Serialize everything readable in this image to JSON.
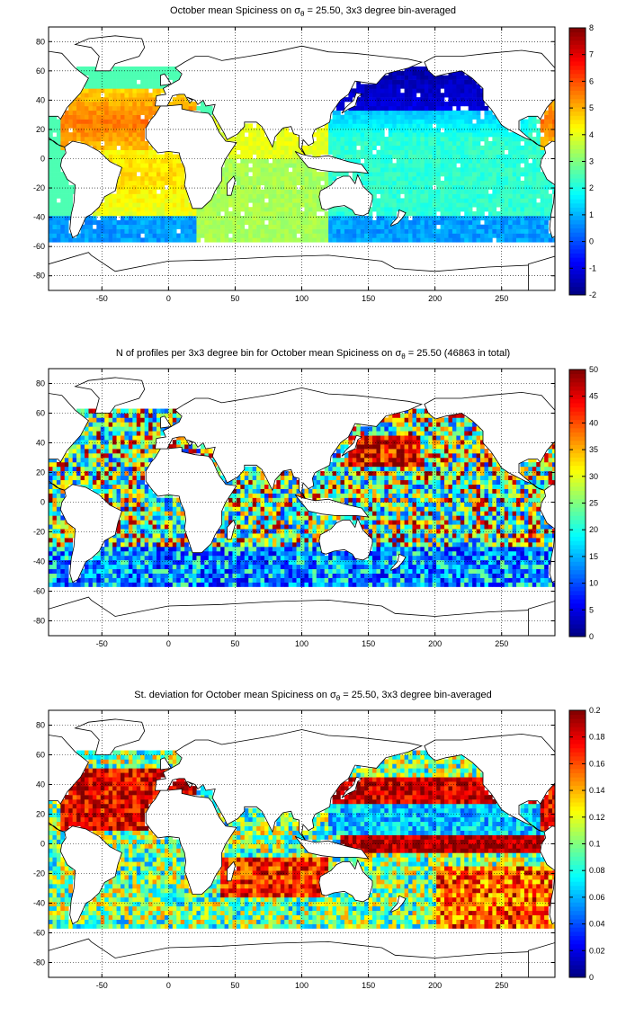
{
  "chart_data": [
    {
      "type": "heatmap",
      "title_parts": {
        "before": "October mean Spiciness on ",
        "symbol": "σ",
        "subscript": "θ",
        "after": " = 25.50, 3x3 degree bin-averaged"
      },
      "xlabel": "",
      "ylabel": "",
      "xlim": [
        -90,
        290
      ],
      "ylim": [
        -90,
        90
      ],
      "xticks": [
        -50,
        0,
        50,
        100,
        150,
        200,
        250
      ],
      "yticks": [
        80,
        60,
        40,
        20,
        0,
        -20,
        -40,
        -60,
        -80
      ],
      "grid": true,
      "colormap": "jet",
      "colorbar": {
        "min": -2,
        "max": 8,
        "ticks": [
          8,
          7,
          6,
          5,
          4,
          3,
          2,
          1,
          0,
          -1,
          -2
        ]
      },
      "regions": [
        {
          "region": "North Atlantic subtropical gyre",
          "value": 5.5
        },
        {
          "region": "South Atlantic",
          "value": 4.8
        },
        {
          "region": "Indian Ocean",
          "value": 3.5
        },
        {
          "region": "Western/Central Pacific tropics",
          "value": 2.3
        },
        {
          "region": "North Pacific subarctic",
          "value": -1.2
        },
        {
          "region": "South Pacific",
          "value": 2.2
        },
        {
          "region": "Southern Ocean edge",
          "value": 0.8
        }
      ]
    },
    {
      "type": "heatmap",
      "title_parts": {
        "before": "N of profiles per 3x3 degree bin for October mean Spiciness on ",
        "symbol": "σ",
        "subscript": "θ",
        "after": " = 25.50 (46863 in total)"
      },
      "xlabel": "",
      "ylabel": "",
      "xlim": [
        -90,
        290
      ],
      "ylim": [
        -90,
        90
      ],
      "xticks": [
        -50,
        0,
        50,
        100,
        150,
        200,
        250
      ],
      "yticks": [
        80,
        60,
        40,
        20,
        0,
        -20,
        -40,
        -60,
        -80
      ],
      "grid": true,
      "colormap": "jet",
      "colorbar": {
        "min": 0,
        "max": 50,
        "ticks": [
          50,
          45,
          40,
          35,
          30,
          25,
          20,
          15,
          10,
          5,
          0
        ]
      },
      "regions": [
        {
          "region": "Kuroshio extension",
          "value": 48
        },
        {
          "region": "North Pacific",
          "value": 22
        },
        {
          "region": "Tropical Pacific",
          "value": 20
        },
        {
          "region": "North Atlantic",
          "value": 20
        },
        {
          "region": "Indian Ocean",
          "value": 25
        },
        {
          "region": "South Atlantic",
          "value": 14
        }
      ]
    },
    {
      "type": "heatmap",
      "title_parts": {
        "before": "St. deviation for October mean Spiciness on ",
        "symbol": "σ",
        "subscript": "θ",
        "after": " = 25.50, 3x3 degree bin-averaged"
      },
      "xlabel": "",
      "ylabel": "",
      "xlim": [
        -90,
        290
      ],
      "ylim": [
        -90,
        90
      ],
      "xticks": [
        -50,
        0,
        50,
        100,
        150,
        200,
        250
      ],
      "yticks": [
        80,
        60,
        40,
        20,
        0,
        -20,
        -40,
        -60,
        -80
      ],
      "grid": true,
      "colormap": "jet",
      "colorbar": {
        "min": 0,
        "max": 0.2,
        "ticks": [
          0.2,
          0.18,
          0.16,
          0.14,
          0.12,
          0.1,
          0.08,
          0.06,
          0.04,
          0.02,
          0
        ]
      },
      "regions": [
        {
          "region": "North Atlantic",
          "value": 0.19
        },
        {
          "region": "Kuroshio / North Pacific band",
          "value": 0.19
        },
        {
          "region": "Equatorial Pacific band",
          "value": 0.19
        },
        {
          "region": "North Pacific subtropics",
          "value": 0.04
        },
        {
          "region": "South Pacific",
          "value": 0.06
        },
        {
          "region": "Southern Indian Ocean",
          "value": 0.17
        }
      ]
    }
  ]
}
